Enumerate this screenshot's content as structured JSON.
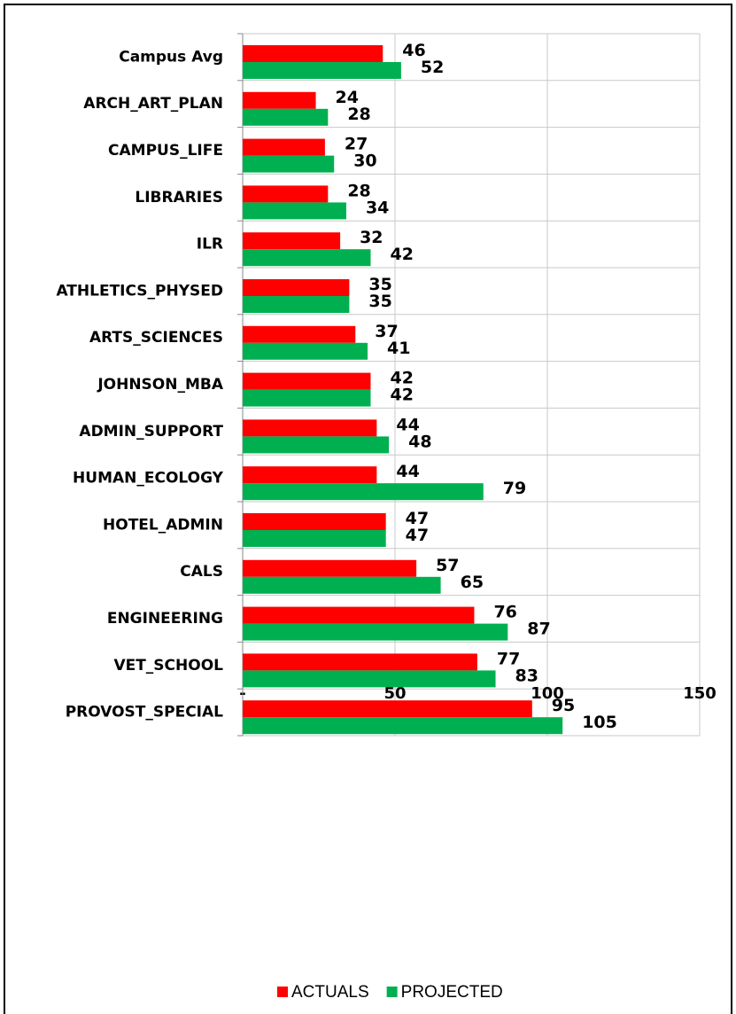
{
  "chart_data": {
    "type": "hbar",
    "categories": [
      "Campus Avg",
      "ARCH_ART_PLAN",
      "CAMPUS_LIFE",
      "LIBRARIES",
      "ILR",
      "ATHLETICS_PHYSED",
      "ARTS_SCIENCES",
      "JOHNSON_MBA",
      "ADMIN_SUPPORT",
      "HUMAN_ECOLOGY",
      "HOTEL_ADMIN",
      "CALS",
      "ENGINEERING",
      "VET_SCHOOL",
      "PROVOST_SPECIAL"
    ],
    "series": [
      {
        "name": "ACTUALS",
        "color": "#ff0000",
        "values": [
          46,
          24,
          27,
          28,
          32,
          35,
          37,
          42,
          44,
          44,
          47,
          57,
          76,
          77,
          95
        ]
      },
      {
        "name": "PROJECTED",
        "color": "#00b050",
        "values": [
          52,
          28,
          30,
          34,
          42,
          35,
          41,
          42,
          48,
          79,
          47,
          65,
          87,
          83,
          105
        ]
      }
    ],
    "xlim": [
      0,
      150
    ],
    "xticks": [
      {
        "value": 0,
        "label": "-"
      },
      50,
      100,
      150
    ],
    "grid": true,
    "legend": "bottom"
  }
}
